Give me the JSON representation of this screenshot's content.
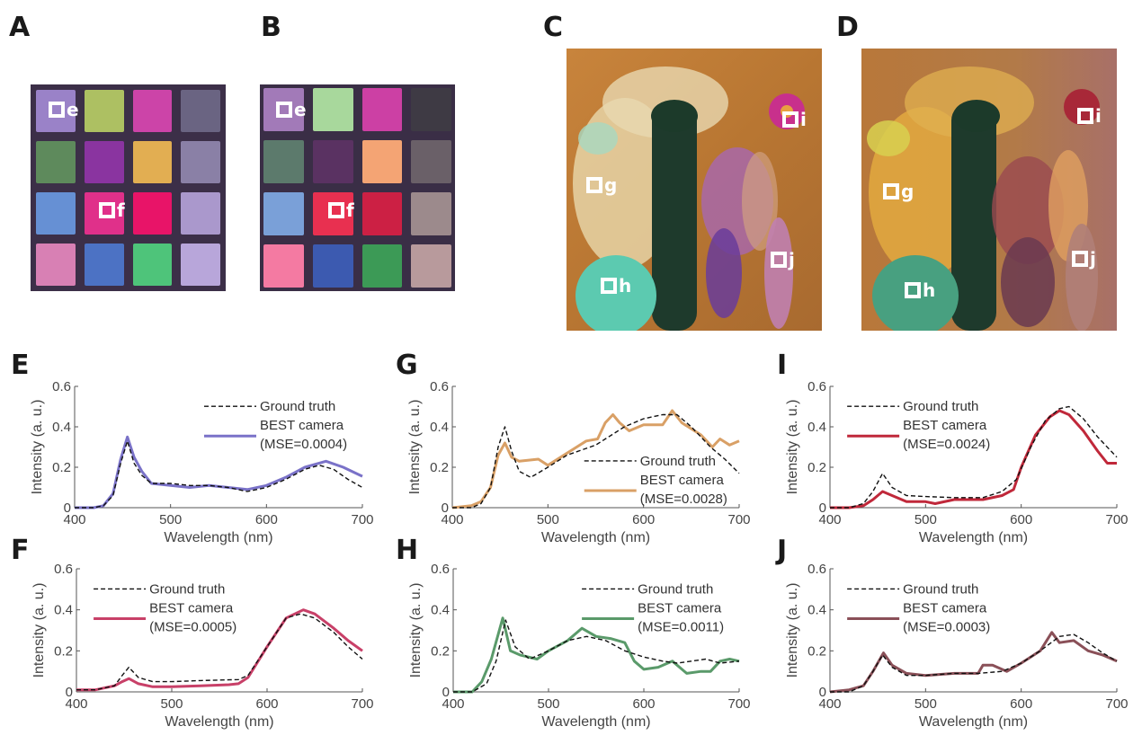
{
  "figure": {
    "panels": {
      "A": {
        "letter": "A",
        "description": "Color checker reference image",
        "markers": [
          {
            "label": "e"
          },
          {
            "label": "f"
          }
        ],
        "patch_colors": [
          "#9a82c8",
          "#adc062",
          "#cc44a8",
          "#6a6482",
          "#5e8a5c",
          "#8a34a0",
          "#e2ae52",
          "#8a80a6",
          "#6690d4",
          "#e0308a",
          "#e81468",
          "#aa98cc",
          "#d880b4",
          "#4c72c4",
          "#4ec47a",
          "#b8a6da"
        ]
      },
      "B": {
        "letter": "B",
        "description": "Color checker BEST camera reconstruction",
        "markers": [
          {
            "label": "e"
          },
          {
            "label": "f"
          }
        ],
        "patch_colors": [
          "#a27ab8",
          "#a8d89c",
          "#cc40a4",
          "#3e3a44",
          "#5c7a6c",
          "#5a3262",
          "#f4a474",
          "#6a6068",
          "#7aa0d8",
          "#e83050",
          "#cc2044",
          "#9c8a8c",
          "#f47aa2",
          "#3c5ab0",
          "#3c9a56",
          "#b89a9c"
        ]
      },
      "C": {
        "letter": "C",
        "description": "Dried flower bouquet reference image",
        "markers": [
          {
            "label": "g"
          },
          {
            "label": "h"
          },
          {
            "label": "i"
          },
          {
            "label": "j"
          }
        ]
      },
      "D": {
        "letter": "D",
        "description": "Dried flower bouquet BEST camera reconstruction",
        "markers": [
          {
            "label": "g"
          },
          {
            "label": "h"
          },
          {
            "label": "i"
          },
          {
            "label": "j"
          }
        ]
      }
    },
    "legend": {
      "ground_truth": "Ground truth",
      "best_camera": "BEST camera"
    }
  },
  "chart_data": [
    {
      "panel": "E",
      "type": "line",
      "xlabel": "Wavelength (nm)",
      "ylabel": "Intensity (a. u.)",
      "xlim": [
        400,
        700
      ],
      "ylim": [
        0,
        0.6
      ],
      "xticks": [
        400,
        500,
        600,
        700
      ],
      "yticks": [
        "0",
        "0.2",
        "0.4",
        "0.6"
      ],
      "legend_position": "top-right",
      "mse_label": "(MSE=0.0004)",
      "color": "#7a72c8",
      "series": [
        {
          "name": "Ground truth",
          "style": "dashed",
          "x": [
            400,
            420,
            430,
            440,
            448,
            455,
            462,
            470,
            480,
            500,
            520,
            540,
            560,
            580,
            600,
            620,
            640,
            655,
            670,
            685,
            700
          ],
          "y": [
            0,
            0,
            0.01,
            0.06,
            0.22,
            0.33,
            0.22,
            0.16,
            0.12,
            0.12,
            0.11,
            0.11,
            0.1,
            0.08,
            0.1,
            0.14,
            0.19,
            0.21,
            0.19,
            0.14,
            0.1
          ]
        },
        {
          "name": "BEST camera",
          "style": "solid",
          "x": [
            400,
            420,
            430,
            440,
            448,
            455,
            462,
            470,
            480,
            500,
            520,
            540,
            560,
            580,
            600,
            620,
            640,
            662,
            680,
            700
          ],
          "y": [
            0,
            0,
            0.01,
            0.07,
            0.24,
            0.35,
            0.25,
            0.18,
            0.12,
            0.11,
            0.1,
            0.11,
            0.1,
            0.09,
            0.11,
            0.15,
            0.2,
            0.23,
            0.2,
            0.155
          ]
        }
      ]
    },
    {
      "panel": "G",
      "type": "line",
      "xlabel": "Wavelength (nm)",
      "ylabel": "Intensity (a. u.)",
      "xlim": [
        400,
        700
      ],
      "ylim": [
        0,
        0.6
      ],
      "xticks": [
        400,
        500,
        600,
        700
      ],
      "yticks": [
        "0",
        "0.2",
        "0.4",
        "0.6"
      ],
      "legend_position": "bottom-right",
      "mse_label": "(MSE=0.0028)",
      "color": "#d9a066",
      "series": [
        {
          "name": "Ground truth",
          "style": "dashed",
          "x": [
            400,
            420,
            430,
            440,
            448,
            455,
            462,
            470,
            482,
            500,
            520,
            550,
            580,
            600,
            620,
            635,
            650,
            670,
            685,
            700
          ],
          "y": [
            0,
            0,
            0.02,
            0.1,
            0.3,
            0.4,
            0.28,
            0.18,
            0.15,
            0.2,
            0.26,
            0.31,
            0.4,
            0.44,
            0.46,
            0.46,
            0.4,
            0.3,
            0.24,
            0.17
          ]
        },
        {
          "name": "BEST camera",
          "style": "solid",
          "x": [
            400,
            420,
            430,
            440,
            448,
            455,
            462,
            470,
            490,
            500,
            520,
            540,
            552,
            560,
            568,
            575,
            585,
            600,
            620,
            630,
            640,
            660,
            672,
            680,
            690,
            700
          ],
          "y": [
            0,
            0.01,
            0.03,
            0.1,
            0.26,
            0.32,
            0.25,
            0.23,
            0.24,
            0.21,
            0.27,
            0.33,
            0.34,
            0.42,
            0.46,
            0.42,
            0.38,
            0.41,
            0.41,
            0.48,
            0.42,
            0.36,
            0.3,
            0.34,
            0.31,
            0.33
          ]
        }
      ]
    },
    {
      "panel": "I",
      "type": "line",
      "xlabel": "Wavelength (nm)",
      "ylabel": "Intensity (a. u.)",
      "xlim": [
        400,
        700
      ],
      "ylim": [
        0,
        0.6
      ],
      "xticks": [
        400,
        500,
        600,
        700
      ],
      "yticks": [
        "0",
        "0.2",
        "0.4",
        "0.6"
      ],
      "legend_position": "top-left",
      "mse_label": "(MSE=0.0024)",
      "color": "#c0283a",
      "series": [
        {
          "name": "Ground truth",
          "style": "dashed",
          "x": [
            400,
            420,
            435,
            445,
            455,
            465,
            480,
            500,
            530,
            560,
            580,
            595,
            610,
            625,
            640,
            650,
            665,
            680,
            700
          ],
          "y": [
            0,
            0,
            0.02,
            0.08,
            0.17,
            0.1,
            0.06,
            0.055,
            0.05,
            0.05,
            0.08,
            0.14,
            0.3,
            0.43,
            0.49,
            0.5,
            0.44,
            0.35,
            0.25
          ]
        },
        {
          "name": "BEST camera",
          "style": "solid",
          "x": [
            400,
            420,
            435,
            445,
            455,
            465,
            480,
            500,
            510,
            530,
            560,
            580,
            592,
            600,
            615,
            630,
            640,
            650,
            665,
            680,
            690,
            700
          ],
          "y": [
            0,
            0,
            0.01,
            0.04,
            0.08,
            0.06,
            0.03,
            0.03,
            0.02,
            0.04,
            0.04,
            0.06,
            0.09,
            0.2,
            0.36,
            0.45,
            0.48,
            0.46,
            0.38,
            0.28,
            0.22,
            0.22
          ]
        }
      ]
    },
    {
      "panel": "F",
      "type": "line",
      "xlabel": "Wavelength (nm)",
      "ylabel": "Intensity (a. u.)",
      "xlim": [
        400,
        700
      ],
      "ylim": [
        0,
        0.6
      ],
      "xticks": [
        400,
        500,
        600,
        700
      ],
      "yticks": [
        "0",
        "0.2",
        "0.4",
        "0.6"
      ],
      "legend_position": "top-left",
      "mse_label": "(MSE=0.0005)",
      "color": "#c84068",
      "series": [
        {
          "name": "Ground truth",
          "style": "dashed",
          "x": [
            400,
            420,
            440,
            448,
            455,
            465,
            480,
            500,
            530,
            570,
            580,
            600,
            620,
            635,
            650,
            670,
            685,
            700
          ],
          "y": [
            0.01,
            0.01,
            0.03,
            0.08,
            0.12,
            0.07,
            0.05,
            0.05,
            0.055,
            0.06,
            0.08,
            0.22,
            0.36,
            0.38,
            0.36,
            0.29,
            0.22,
            0.16
          ]
        },
        {
          "name": "BEST camera",
          "style": "solid",
          "x": [
            400,
            420,
            440,
            448,
            455,
            465,
            480,
            500,
            530,
            560,
            570,
            580,
            600,
            620,
            638,
            650,
            670,
            685,
            700
          ],
          "y": [
            0.01,
            0.01,
            0.03,
            0.05,
            0.065,
            0.04,
            0.025,
            0.025,
            0.03,
            0.035,
            0.04,
            0.07,
            0.22,
            0.36,
            0.4,
            0.38,
            0.31,
            0.25,
            0.2
          ]
        }
      ]
    },
    {
      "panel": "H",
      "type": "line",
      "xlabel": "Wavelength (nm)",
      "ylabel": "Intensity (a. u.)",
      "xlim": [
        400,
        700
      ],
      "ylim": [
        0,
        0.6
      ],
      "xticks": [
        400,
        500,
        600,
        700
      ],
      "yticks": [
        "0",
        "0.2",
        "0.4",
        "0.6"
      ],
      "legend_position": "top-right",
      "mse_label": "(MSE=0.0011)",
      "color": "#5a9a6a",
      "series": [
        {
          "name": "Ground truth",
          "style": "dashed",
          "x": [
            400,
            420,
            435,
            445,
            455,
            465,
            480,
            500,
            520,
            540,
            560,
            580,
            600,
            620,
            635,
            650,
            665,
            680,
            700
          ],
          "y": [
            0,
            0,
            0.04,
            0.15,
            0.35,
            0.22,
            0.16,
            0.2,
            0.25,
            0.27,
            0.25,
            0.2,
            0.17,
            0.15,
            0.14,
            0.15,
            0.16,
            0.14,
            0.15
          ]
        },
        {
          "name": "BEST camera",
          "style": "solid",
          "x": [
            400,
            420,
            430,
            440,
            452,
            460,
            470,
            488,
            500,
            520,
            535,
            550,
            565,
            580,
            590,
            600,
            615,
            630,
            645,
            660,
            670,
            680,
            690,
            700
          ],
          "y": [
            0,
            0,
            0.05,
            0.16,
            0.36,
            0.2,
            0.18,
            0.16,
            0.2,
            0.25,
            0.31,
            0.27,
            0.26,
            0.24,
            0.15,
            0.11,
            0.12,
            0.15,
            0.09,
            0.1,
            0.1,
            0.15,
            0.16,
            0.15
          ]
        }
      ]
    },
    {
      "panel": "J",
      "type": "line",
      "xlabel": "Wavelength (nm)",
      "ylabel": "Intensity (a. u.)",
      "xlim": [
        400,
        700
      ],
      "ylim": [
        0,
        0.6
      ],
      "xticks": [
        400,
        500,
        600,
        700
      ],
      "yticks": [
        "0",
        "0.2",
        "0.4",
        "0.6"
      ],
      "legend_position": "top-left",
      "mse_label": "(MSE=0.0003)",
      "color": "#8a5058",
      "series": [
        {
          "name": "Ground truth",
          "style": "dashed",
          "x": [
            400,
            420,
            435,
            445,
            455,
            465,
            480,
            500,
            530,
            555,
            580,
            600,
            620,
            640,
            655,
            670,
            685,
            700
          ],
          "y": [
            0,
            0,
            0.03,
            0.1,
            0.18,
            0.12,
            0.08,
            0.08,
            0.09,
            0.09,
            0.1,
            0.14,
            0.2,
            0.27,
            0.28,
            0.24,
            0.19,
            0.15
          ]
        },
        {
          "name": "BEST camera",
          "style": "solid",
          "x": [
            400,
            420,
            435,
            445,
            456,
            465,
            480,
            500,
            530,
            555,
            560,
            570,
            585,
            600,
            620,
            632,
            640,
            655,
            670,
            685,
            700
          ],
          "y": [
            0,
            0.01,
            0.03,
            0.1,
            0.19,
            0.13,
            0.09,
            0.08,
            0.09,
            0.09,
            0.13,
            0.13,
            0.1,
            0.14,
            0.2,
            0.29,
            0.24,
            0.25,
            0.2,
            0.18,
            0.15
          ]
        }
      ]
    }
  ]
}
